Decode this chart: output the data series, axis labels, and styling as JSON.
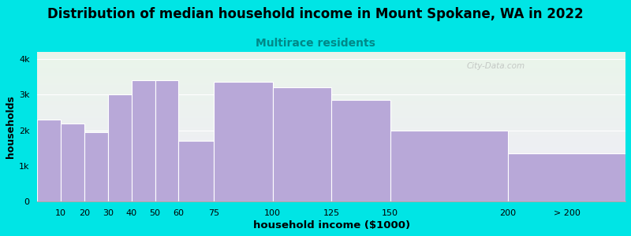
{
  "title": "Distribution of median household income in Mount Spokane, WA in 2022",
  "subtitle": "Multirace residents",
  "xlabel": "household income ($1000)",
  "ylabel": "households",
  "bar_labels": [
    "10",
    "20",
    "30",
    "40",
    "50",
    "60",
    "75",
    "100",
    "125",
    "150",
    "200",
    "> 200"
  ],
  "bar_values": [
    2300,
    2200,
    1950,
    3000,
    3400,
    3400,
    1700,
    3350,
    3200,
    2850,
    2000,
    1350
  ],
  "bar_lefts": [
    0,
    10,
    20,
    30,
    40,
    50,
    60,
    75,
    100,
    125,
    150,
    200
  ],
  "bar_widths": [
    10,
    10,
    10,
    10,
    10,
    10,
    15,
    25,
    25,
    25,
    50,
    50
  ],
  "bar_color": "#b8a8d8",
  "bar_edgecolor": "#ffffff",
  "background_outer": "#00e5e5",
  "background_plot_top": "#eaf5ea",
  "background_plot_bottom": "#f0ecf8",
  "ytick_labels": [
    "0",
    "1k",
    "2k",
    "3k",
    "4k"
  ],
  "ytick_values": [
    0,
    1000,
    2000,
    3000,
    4000
  ],
  "ylim": [
    0,
    4200
  ],
  "xlim": [
    0,
    250
  ],
  "xtick_positions": [
    10,
    20,
    30,
    40,
    50,
    60,
    75,
    100,
    125,
    150,
    200,
    225
  ],
  "xtick_labels": [
    "10",
    "20",
    "30",
    "40",
    "50",
    "60",
    "75",
    "100",
    "125",
    "150",
    "200",
    "> 200"
  ],
  "watermark": "City-Data.com",
  "title_fontsize": 12,
  "subtitle_fontsize": 10,
  "xlabel_fontsize": 9.5,
  "ylabel_fontsize": 9,
  "subtitle_color": "#008888"
}
